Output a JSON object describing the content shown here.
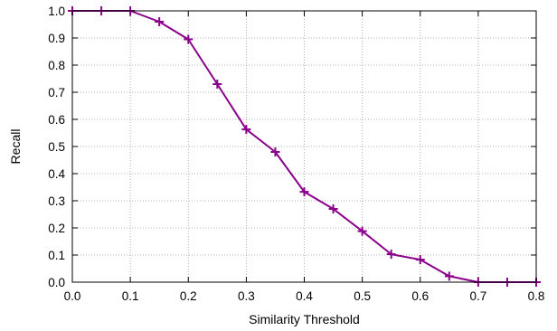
{
  "chart_data": {
    "type": "line",
    "title": "",
    "xlabel": "Similarity Threshold",
    "ylabel": "Recall",
    "xlim": [
      0.0,
      0.8
    ],
    "ylim": [
      0.0,
      1.0
    ],
    "xticks": [
      "0.0",
      "0.1",
      "0.2",
      "0.3",
      "0.4",
      "0.5",
      "0.6",
      "0.7",
      "0.8"
    ],
    "yticks": [
      "0.0",
      "0.1",
      "0.2",
      "0.3",
      "0.4",
      "0.5",
      "0.6",
      "0.7",
      "0.8",
      "0.9",
      "1.0"
    ],
    "grid": true,
    "legend": "none",
    "series": [
      {
        "color": "#8b008b",
        "marker": "plus",
        "x": [
          0.0,
          0.05,
          0.1,
          0.15,
          0.2,
          0.25,
          0.3,
          0.35,
          0.4,
          0.45,
          0.5,
          0.55,
          0.6,
          0.65,
          0.7,
          0.75,
          0.8
        ],
        "y": [
          1.0,
          1.0,
          1.0,
          0.96,
          0.895,
          0.73,
          0.563,
          0.48,
          0.333,
          0.27,
          0.188,
          0.103,
          0.083,
          0.022,
          0.0,
          0.0,
          0.0
        ]
      }
    ]
  }
}
